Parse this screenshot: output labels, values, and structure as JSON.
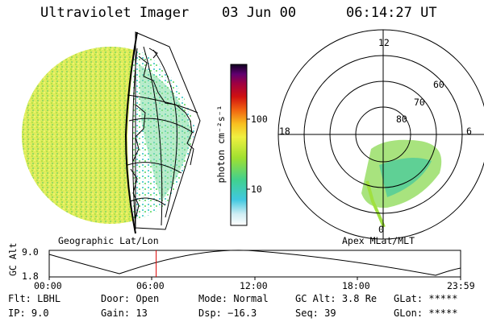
{
  "header": {
    "instrument": "Ultraviolet Imager",
    "date": "03 Jun 00",
    "time": "06:14:27 UT"
  },
  "colorbar": {
    "unit_label": "photon cm⁻²s⁻¹",
    "tick_100": "100",
    "tick_10": "10"
  },
  "polar": {
    "hour_12": "12",
    "hour_18": "18",
    "hour_6": "6",
    "hour_0": "0",
    "lat_60": "60",
    "lat_70": "70",
    "lat_80": "80"
  },
  "panel_labels": {
    "left": "Geographic Lat/Lon",
    "right": "Apex MLat/MLT"
  },
  "altitude_plot": {
    "axis_label": "GC Alt",
    "y_top": "9.0",
    "y_bottom": "1.8",
    "times": [
      "00:00",
      "06:00",
      "12:00",
      "18:00",
      "23:59"
    ],
    "current_time_hours": 6.24,
    "marker_color": "#dd0000"
  },
  "status": {
    "flt_label": "Flt:",
    "flt_value": "LBHL",
    "ip_label": "IP:",
    "ip_value": "9.0",
    "door_label": "Door:",
    "door_value": "Open",
    "gain_label": "Gain:",
    "gain_value": "13",
    "mode_label": "Mode:",
    "mode_value": "Normal",
    "dsp_label": "Dsp:",
    "dsp_value": "−16.3",
    "gcalt_label": "GC Alt:",
    "gcalt_value": "3.8 Re",
    "seq_label": "Seq:",
    "seq_value": "39",
    "glat_label": "GLat:",
    "glat_value": "*****",
    "glon_label": "GLon:",
    "glon_value": "*****"
  }
}
